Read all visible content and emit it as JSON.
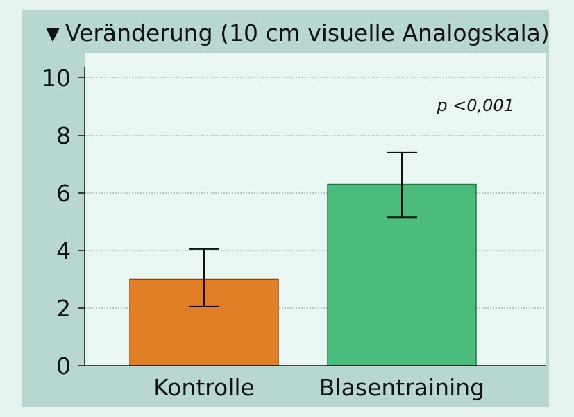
{
  "chart_data": {
    "type": "bar",
    "title": "Veränderung (10 cm visuelle Analogskala)",
    "title_marker": "▼",
    "categories": [
      "Kontrolle",
      "Blasentraining"
    ],
    "values": [
      3.0,
      6.3
    ],
    "error_low": [
      2.05,
      5.15
    ],
    "error_high": [
      4.05,
      7.4
    ],
    "bar_colors": [
      "#e07f25",
      "#4cbc7c"
    ],
    "ylim": [
      0,
      10
    ],
    "yticks": [
      0,
      2,
      4,
      6,
      8,
      10
    ],
    "grid": true,
    "annotation": "p <0,001",
    "xlabel": "",
    "ylabel": ""
  }
}
